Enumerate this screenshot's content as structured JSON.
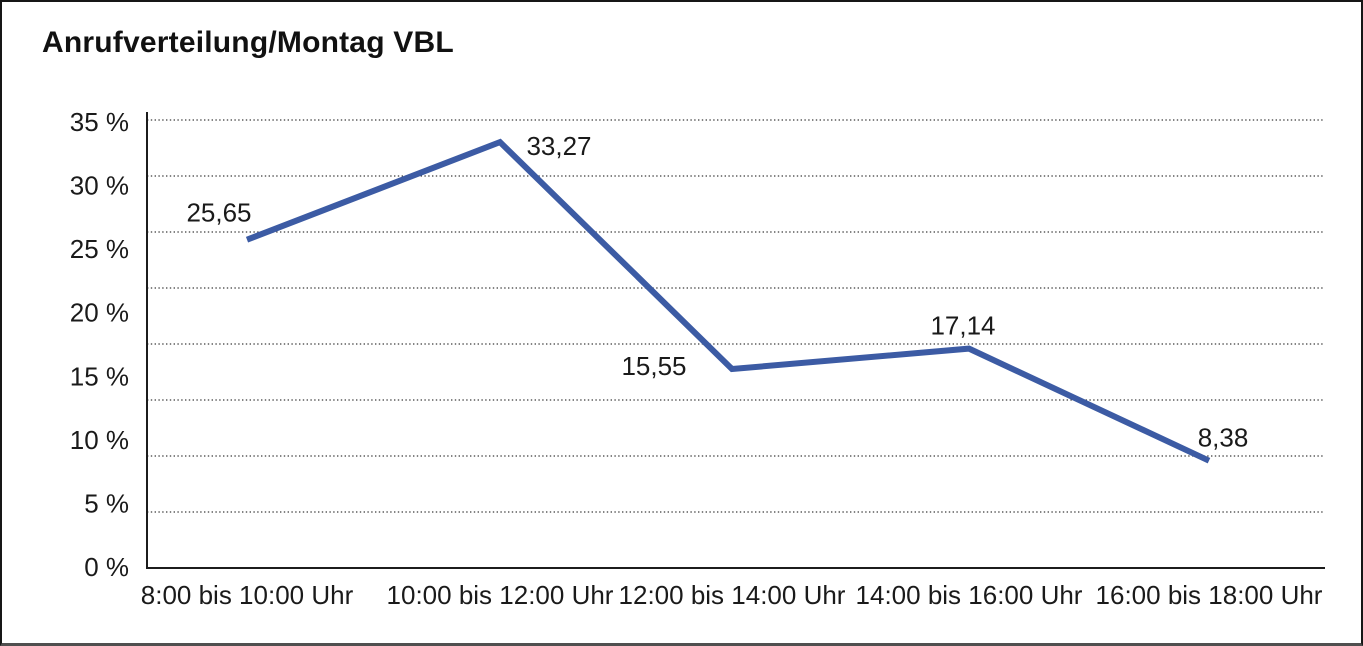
{
  "window": {
    "background": "#ffffff",
    "border_color": "#161616"
  },
  "chart_data": {
    "type": "line",
    "title": "Anrufverteilung/Montag VBL",
    "categories": [
      "8:00 bis 10:00 Uhr",
      "10:00 bis 12:00 Uhr",
      "12:00 bis 14:00 Uhr",
      "14:00 bis 16:00 Uhr",
      "16:00 bis 18:00 Uhr"
    ],
    "series": [
      {
        "values": [
          25.65,
          33.27,
          15.55,
          17.14,
          8.38
        ],
        "point_labels": [
          "25,65",
          "33,27",
          "15,55",
          "17,14",
          "8,38"
        ]
      }
    ],
    "y_axis": {
      "ticks": [
        "35 %",
        "30 %",
        "25 %",
        "20 %",
        "15 %",
        "10 %",
        "5 %",
        "0 %"
      ],
      "min": 0,
      "max": 35,
      "unit": "%"
    },
    "grid": {
      "horizontal": true,
      "style": "dotted",
      "line_count": 9
    },
    "legend": "none",
    "colors": {
      "line": "#3c5ba4",
      "text": "#1a1a1a",
      "grid": "#3a3a3a",
      "axis": "#1c1c1c"
    }
  }
}
